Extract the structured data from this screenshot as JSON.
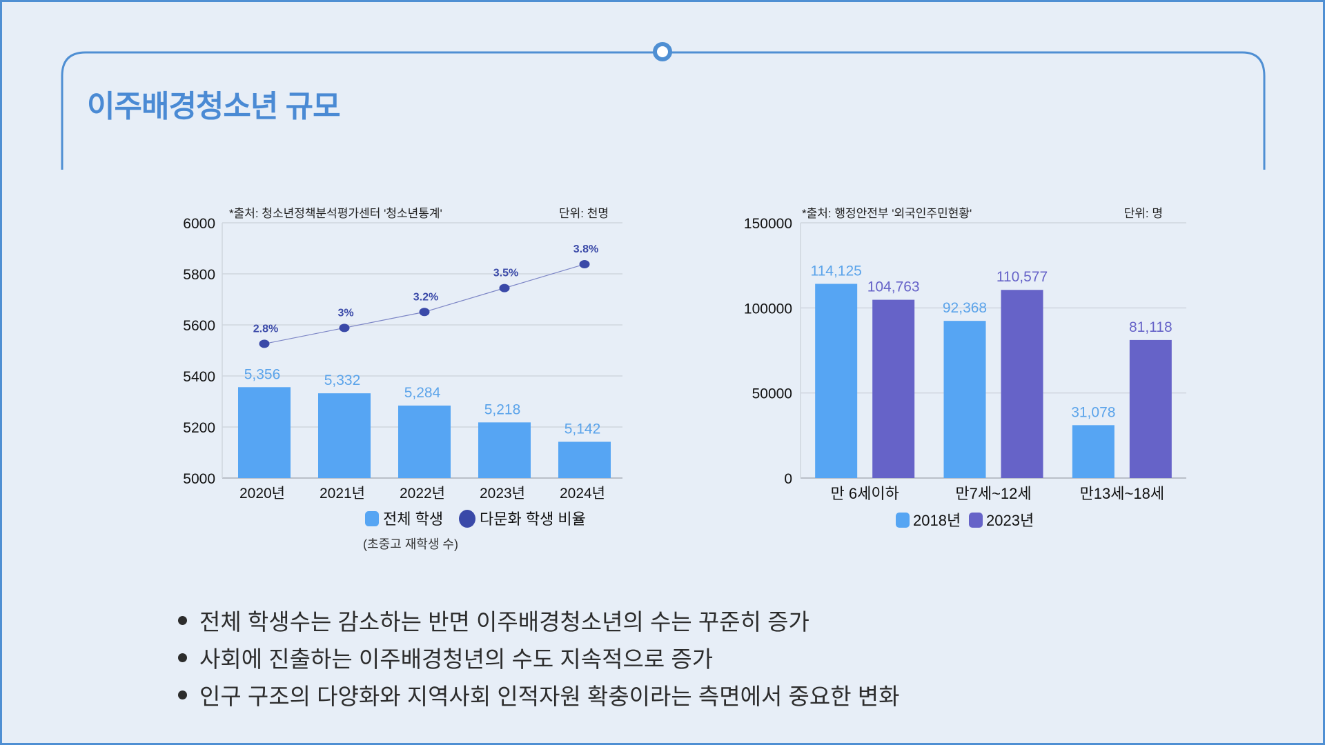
{
  "slide": {
    "title": "이주배경청소년 규모",
    "accent_color": "#4f8fd3",
    "bullets": [
      "전체 학생수는 감소하는 반면 이주배경청소년의 수는 꾸준히 증가",
      "사회에 진출하는 이주배경청년의 수도 지속적으로 증가",
      "인구 구조의 다양화와 지역사회 인적자원 확충이라는 측면에서 중요한 변화"
    ]
  },
  "chart_data": [
    {
      "type": "bar",
      "source": "*출처: 청소년정책분석평가센터 '청소년통계'",
      "unit": "단위: 천명",
      "categories": [
        "2020년",
        "2021년",
        "2022년",
        "2023년",
        "2024년"
      ],
      "ylim": [
        5000,
        6000
      ],
      "yticks": [
        "5000",
        "5200",
        "5400",
        "5600",
        "5800",
        "6000"
      ],
      "ytick_values": [
        5000,
        5200,
        5400,
        5600,
        5800,
        6000
      ],
      "grid": true,
      "legend_position": "bottom",
      "legend_note": "(초중고 재학생 수)",
      "series": [
        {
          "name": "전체 학생",
          "type": "bar",
          "color": "#56a5f3",
          "values": [
            5356,
            5332,
            5284,
            5218,
            5142
          ],
          "labels": [
            "5,356",
            "5,332",
            "5,284",
            "5,218",
            "5,142"
          ]
        },
        {
          "name": "다문화 학생 비율",
          "type": "line",
          "color": "#3a49a8",
          "secondary_ylim": [
            1.114,
            4.32
          ],
          "values": [
            2.8,
            3.0,
            3.2,
            3.5,
            3.8
          ],
          "labels": [
            "2.8%",
            "3%",
            "3.2%",
            "3.5%",
            "3.8%"
          ]
        }
      ]
    },
    {
      "type": "bar",
      "source": "*출처: 행정안전부 '외국인주민현황'",
      "unit": "단위: 명",
      "categories": [
        "만 6세이하",
        "만7세~12세",
        "만13세~18세"
      ],
      "ylim": [
        0,
        150000
      ],
      "yticks": [
        "0",
        "50000",
        "100000",
        "150000"
      ],
      "ytick_values": [
        0,
        50000,
        100000,
        150000
      ],
      "grid": true,
      "legend_position": "bottom",
      "series": [
        {
          "name": "2018년",
          "color": "#56a5f3",
          "values": [
            114125,
            92368,
            31078
          ],
          "labels": [
            "114,125",
            "92,368",
            "31,078"
          ]
        },
        {
          "name": "2023년",
          "color": "#6663c8",
          "values": [
            104763,
            110577,
            81118
          ],
          "labels": [
            "104,763",
            "110,577",
            "81,118"
          ]
        }
      ]
    }
  ]
}
